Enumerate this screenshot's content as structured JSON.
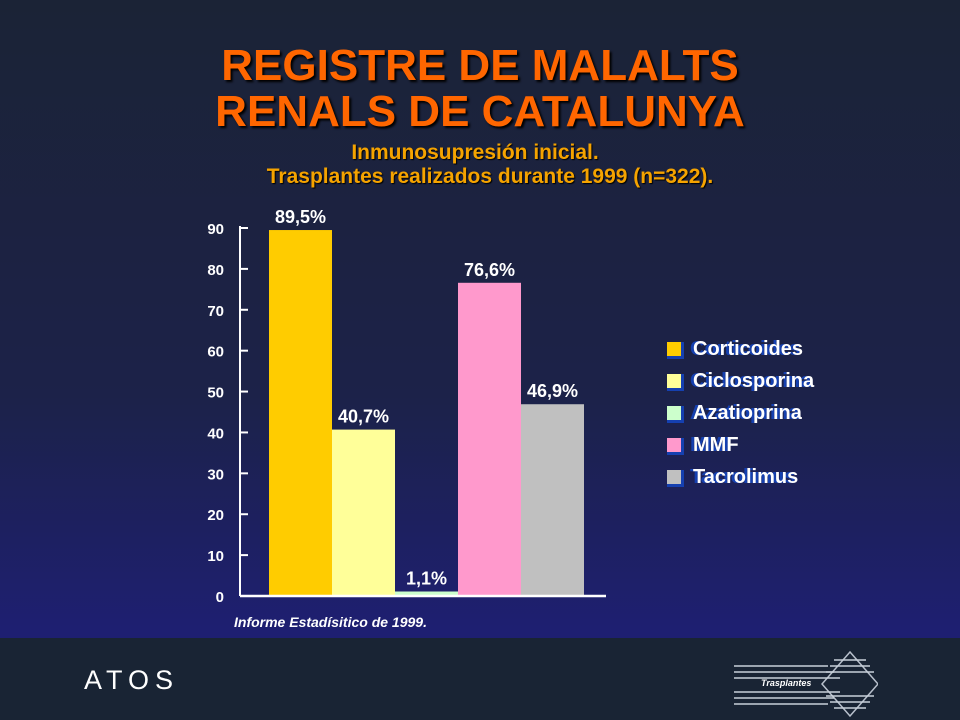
{
  "title": {
    "line1": "REGISTRE DE MALALTS",
    "line2": "RENALS DE CATALUNYA"
  },
  "subtitle": {
    "line1": "Inmunosupresión inicial.",
    "line2": "Trasplantes realizados durante 1999 (n=322)."
  },
  "chart_data": {
    "type": "bar",
    "categories": [
      "Corticoides",
      "Ciclosporina",
      "Azatioprina",
      "MMF",
      "Tacrolimus"
    ],
    "values": [
      89.5,
      40.7,
      1.1,
      76.6,
      46.9
    ],
    "value_labels": [
      "89,5%",
      "40,7%",
      "1,1%",
      "76,6%",
      "46,9%"
    ],
    "colors": [
      "#ffcc00",
      "#ffff99",
      "#ccffcc",
      "#ff99cc",
      "#c0c0c0"
    ],
    "ylim": [
      0,
      90
    ],
    "yticks": [
      0,
      10,
      20,
      30,
      40,
      50,
      60,
      70,
      80,
      90
    ],
    "grid": false,
    "legend_position": "right",
    "xlabel": "",
    "ylabel": ""
  },
  "legend": {
    "items": [
      "Corticoides",
      "Ciclosporina",
      "Azatioprina",
      "MMF",
      "Tacrolimus"
    ]
  },
  "source": "Informe Estadísitico de 1999.",
  "footer": {
    "brand": "ATOS",
    "logo_text": "Trasplantes"
  }
}
